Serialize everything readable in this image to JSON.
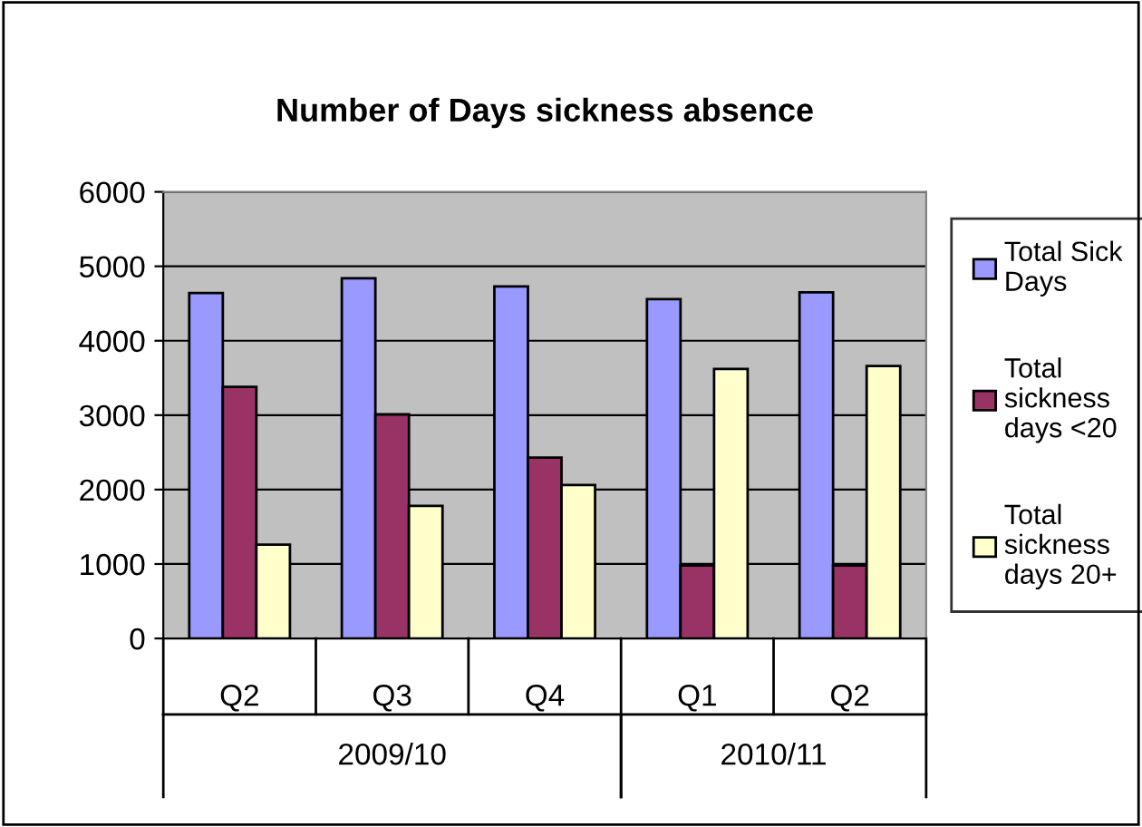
{
  "chart_data": {
    "type": "bar",
    "title": "Number of Days sickness absence",
    "categories": [
      "Q2",
      "Q3",
      "Q4",
      "Q1",
      "Q2"
    ],
    "series": [
      {
        "name": "Total Sick Days",
        "color": "#9999ff",
        "values": [
          4640,
          4840,
          4730,
          4560,
          4650
        ]
      },
      {
        "name": "Total sickness days <20",
        "color": "#993366",
        "values": [
          3380,
          3010,
          2430,
          980,
          980
        ]
      },
      {
        "name": "Total sickness days 20+",
        "color": "#ffffcc",
        "values": [
          1260,
          1780,
          2060,
          3620,
          3660
        ]
      }
    ],
    "annotations": [
      "2009/10",
      "2010/11"
    ],
    "ylim": [
      0,
      6000
    ],
    "yticks": [
      0,
      1000,
      2000,
      3000,
      4000,
      5000,
      6000
    ],
    "grid": "y",
    "legend": "right"
  }
}
